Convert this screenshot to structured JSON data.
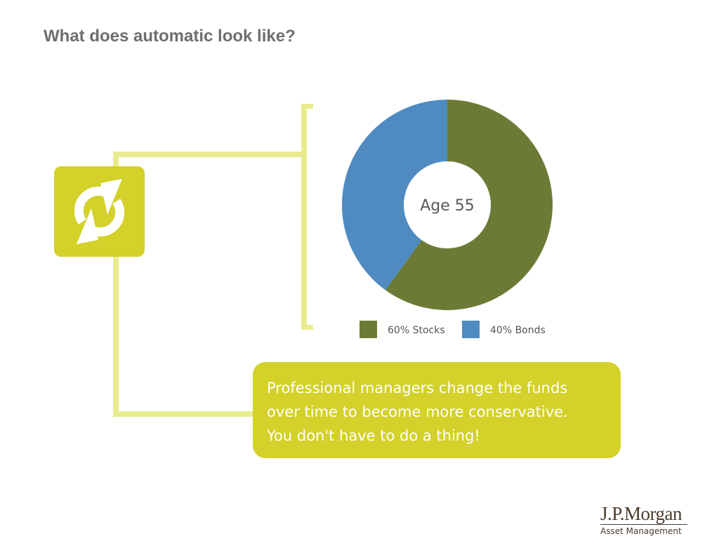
{
  "slide": {
    "title": "What does automatic look like?",
    "message": "Professional managers change the funds\nover time to become more conservative.\nYou don't have to do a thing!"
  },
  "icon": {
    "name": "refresh-icon"
  },
  "colors": {
    "accent": "#d3d12a",
    "connector": "#e9ec8e",
    "title_text": "#6d6e71",
    "stocks": "#6b7b36",
    "bonds": "#4f8bc0"
  },
  "chart_data": {
    "type": "pie",
    "style": "donut",
    "center_label": "Age 55",
    "slices": [
      {
        "label": "60% Stocks",
        "value": 60,
        "color": "#6b7b36"
      },
      {
        "label": "40% Bonds",
        "value": 40,
        "color": "#4f8bc0"
      }
    ],
    "legend_placement": "bottom"
  },
  "logo": {
    "name": "J.P.Morgan",
    "subtitle": "Asset Management"
  }
}
